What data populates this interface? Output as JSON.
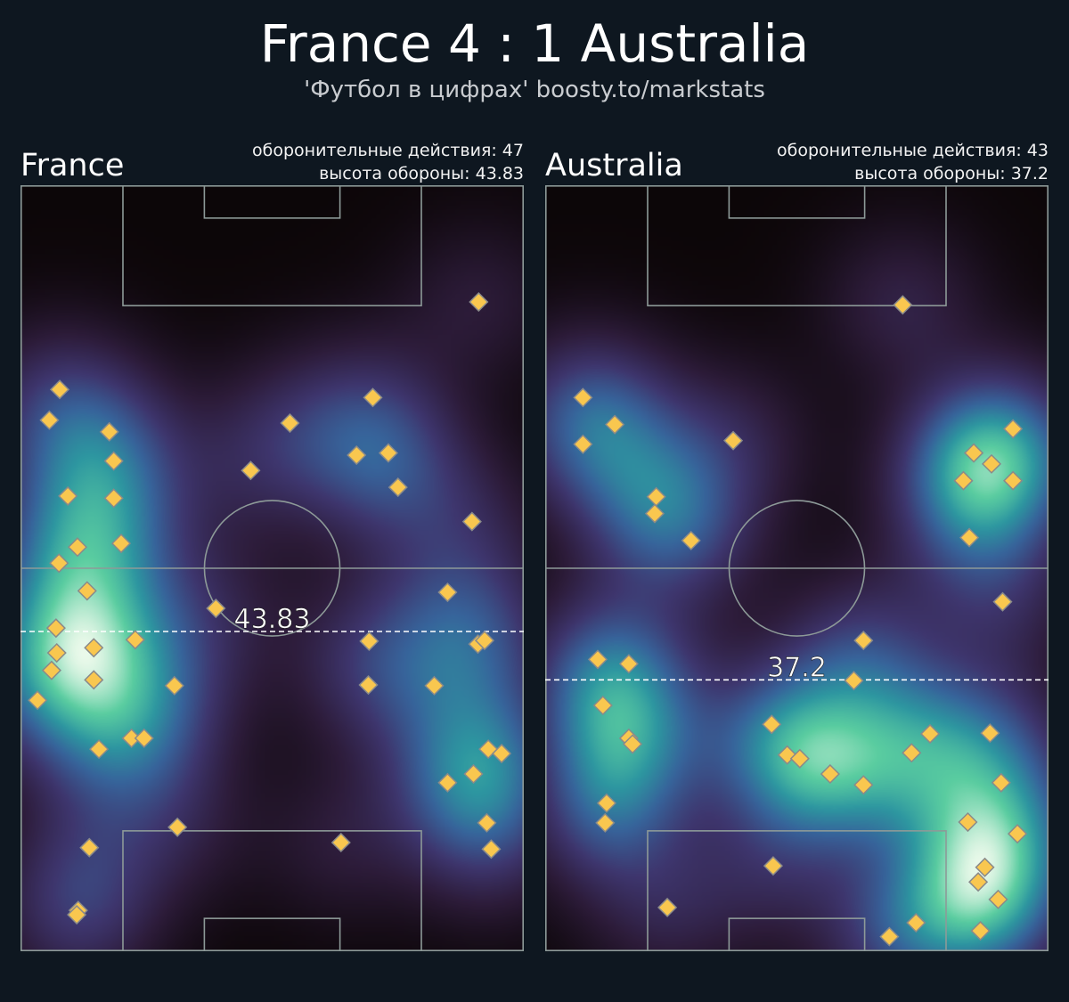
{
  "title": "France 4 : 1 Australia",
  "subtitle": "'Футбол в цифрах' boosty.to/markstats",
  "colors": {
    "background": "#0e1720",
    "marker_fill": "#f9c74f",
    "marker_edge": "#8a8a8a",
    "lines": "#8d9a98"
  },
  "chart_data": [
    {
      "type": "heatmap",
      "team": "France",
      "stats": [
        "оборонительные действия: 47",
        "высота обороны: 43.83"
      ],
      "defensive_actions": 47,
      "defense_height": 43.83,
      "defense_height_label": "43.83",
      "xlim": [
        0,
        68
      ],
      "ylim": [
        0,
        105
      ],
      "points": [
        [
          61.9,
          89.0
        ],
        [
          5.3,
          77.0
        ],
        [
          3.9,
          72.8
        ],
        [
          12.0,
          71.2
        ],
        [
          12.6,
          67.2
        ],
        [
          6.4,
          62.4
        ],
        [
          12.6,
          62.1
        ],
        [
          7.7,
          55.4
        ],
        [
          13.6,
          55.9
        ],
        [
          5.2,
          53.2
        ],
        [
          9.0,
          49.4
        ],
        [
          26.4,
          47.0
        ],
        [
          4.8,
          44.3
        ],
        [
          15.5,
          42.7
        ],
        [
          9.9,
          41.6
        ],
        [
          4.9,
          40.9
        ],
        [
          4.2,
          38.5
        ],
        [
          9.9,
          37.2
        ],
        [
          20.8,
          36.4
        ],
        [
          2.3,
          34.4
        ],
        [
          15.0,
          29.2
        ],
        [
          16.7,
          29.2
        ],
        [
          10.6,
          27.7
        ],
        [
          21.2,
          17.0
        ],
        [
          9.3,
          14.2
        ],
        [
          7.8,
          5.6
        ],
        [
          7.6,
          5.0
        ],
        [
          36.4,
          72.4
        ],
        [
          31.1,
          65.9
        ],
        [
          47.6,
          75.9
        ],
        [
          45.4,
          68.0
        ],
        [
          49.7,
          68.3
        ],
        [
          51.0,
          63.6
        ],
        [
          61.0,
          58.9
        ],
        [
          57.7,
          49.2
        ],
        [
          47.1,
          42.5
        ],
        [
          61.8,
          42.1
        ],
        [
          62.7,
          42.6
        ],
        [
          47.0,
          36.5
        ],
        [
          55.9,
          36.4
        ],
        [
          63.2,
          27.7
        ],
        [
          65.0,
          27.1
        ],
        [
          61.2,
          24.3
        ],
        [
          57.7,
          23.1
        ],
        [
          63.0,
          17.6
        ],
        [
          63.6,
          14.0
        ],
        [
          43.3,
          14.9
        ]
      ]
    },
    {
      "type": "heatmap",
      "team": "Australia",
      "stats": [
        "оборонительные действия: 43",
        "высота обороны: 37.2"
      ],
      "defensive_actions": 43,
      "defense_height": 37.2,
      "defense_height_label": "37.2",
      "xlim": [
        0,
        68
      ],
      "ylim": [
        0,
        105
      ],
      "points": [
        [
          48.3,
          88.6
        ],
        [
          5.1,
          75.9
        ],
        [
          9.4,
          72.2
        ],
        [
          5.1,
          69.5
        ],
        [
          25.4,
          70.0
        ],
        [
          15.0,
          62.3
        ],
        [
          14.8,
          60.0
        ],
        [
          19.7,
          56.3
        ],
        [
          63.2,
          71.6
        ],
        [
          57.9,
          68.3
        ],
        [
          60.3,
          66.8
        ],
        [
          56.5,
          64.5
        ],
        [
          63.2,
          64.5
        ],
        [
          57.3,
          56.7
        ],
        [
          61.8,
          47.9
        ],
        [
          43.0,
          42.6
        ],
        [
          7.1,
          40.0
        ],
        [
          11.3,
          39.4
        ],
        [
          41.7,
          37.1
        ],
        [
          7.8,
          33.7
        ],
        [
          11.3,
          29.2
        ],
        [
          11.8,
          28.4
        ],
        [
          30.6,
          31.1
        ],
        [
          32.7,
          26.9
        ],
        [
          34.4,
          26.4
        ],
        [
          38.5,
          24.3
        ],
        [
          43.0,
          22.8
        ],
        [
          49.5,
          27.2
        ],
        [
          52.0,
          29.8
        ],
        [
          60.1,
          29.9
        ],
        [
          61.6,
          23.1
        ],
        [
          8.3,
          20.3
        ],
        [
          8.1,
          17.6
        ],
        [
          57.1,
          17.7
        ],
        [
          63.8,
          16.1
        ],
        [
          30.8,
          11.7
        ],
        [
          59.4,
          11.5
        ],
        [
          58.5,
          9.5
        ],
        [
          61.2,
          7.1
        ],
        [
          16.5,
          6.0
        ],
        [
          50.1,
          3.9
        ],
        [
          46.5,
          2.0
        ],
        [
          58.8,
          2.8
        ]
      ]
    }
  ]
}
